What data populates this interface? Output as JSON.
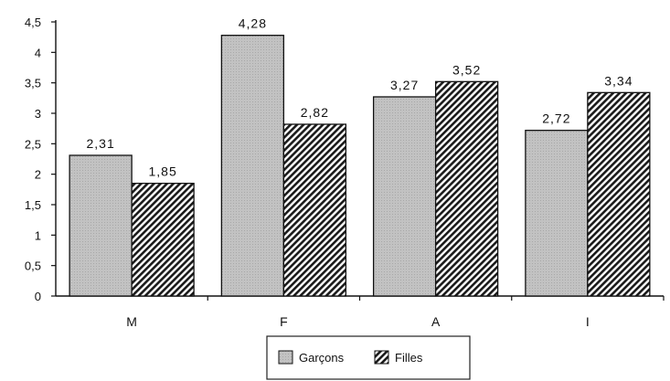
{
  "chart_data": {
    "type": "bar",
    "categories": [
      "M",
      "F",
      "A",
      "I"
    ],
    "series": [
      {
        "name": "Garçons",
        "values": [
          2.31,
          4.28,
          3.27,
          2.72
        ],
        "labels": [
          "2,31",
          "4,28",
          "3,27",
          "2,72"
        ],
        "style": "solid-gray",
        "color": "#bdbdbd"
      },
      {
        "name": "Filles",
        "values": [
          1.85,
          2.82,
          3.52,
          3.34
        ],
        "labels": [
          "1,85",
          "2,82",
          "3,52",
          "3,34"
        ],
        "style": "hatched",
        "color": "#1a1a1a"
      }
    ],
    "yticks": [
      "0",
      "0,5",
      "1",
      "1,5",
      "2",
      "2,5",
      "3",
      "3,5",
      "4",
      "4,5"
    ],
    "ylim": [
      0,
      4.5
    ],
    "title": "",
    "xlabel": "",
    "ylabel": "",
    "grid": false,
    "legend_placement": "bottom-center"
  }
}
